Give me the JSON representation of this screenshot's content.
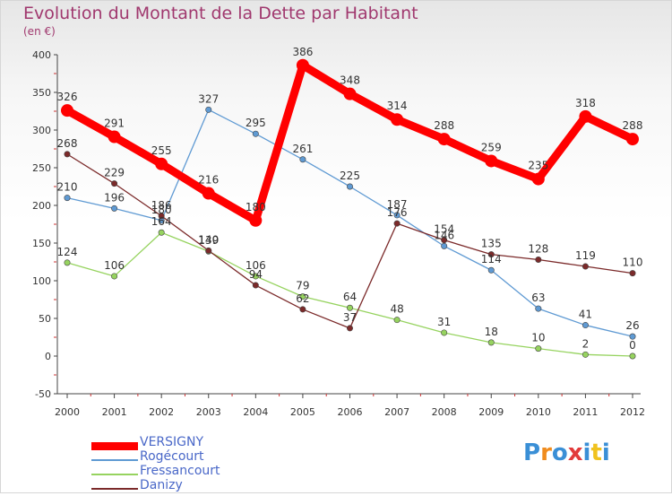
{
  "title": "Evolution du Montant de la Dette par Habitant",
  "unit": "(en €)",
  "logo": {
    "text": "Proxiti"
  },
  "chart_data": {
    "type": "line",
    "title": "Evolution du Montant de la Dette par Habitant",
    "ylabel": "(en €)",
    "xlabel": "",
    "x": [
      "2000",
      "2001",
      "2002",
      "2003",
      "2004",
      "2005",
      "2006",
      "2007",
      "2008",
      "2009",
      "2010",
      "2011",
      "2012"
    ],
    "ylim": [
      -50,
      400
    ],
    "yticks": [
      -50,
      0,
      50,
      100,
      150,
      200,
      250,
      300,
      350,
      400
    ],
    "grid": false,
    "legend_position": "bottom-left",
    "series": [
      {
        "name": "VERSIGNY",
        "color": "#ff0000",
        "values": [
          326,
          291,
          255,
          216,
          180,
          386,
          348,
          314,
          288,
          259,
          235,
          318,
          288
        ]
      },
      {
        "name": "Rogécourt",
        "color": "#5f9ad3",
        "values": [
          210,
          196,
          180,
          327,
          295,
          261,
          225,
          187,
          146,
          114,
          63,
          41,
          26
        ]
      },
      {
        "name": "Fressancourt",
        "color": "#96d35f",
        "values": [
          124,
          106,
          164,
          139,
          106,
          79,
          64,
          48,
          31,
          18,
          10,
          2,
          0
        ]
      },
      {
        "name": "Danizy",
        "color": "#7b2a2a",
        "values": [
          268,
          229,
          186,
          140,
          94,
          62,
          37,
          176,
          154,
          135,
          128,
          119,
          110
        ]
      }
    ]
  }
}
